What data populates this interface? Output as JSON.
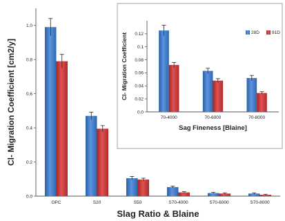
{
  "chart_data": [
    {
      "type": "bar",
      "categories": [
        "OPC",
        "S20",
        "S50",
        "S70-4000",
        "S70-6000",
        "S70-8000"
      ],
      "series": [
        {
          "name": "28D",
          "values": [
            0.99,
            0.47,
            0.105,
            0.053,
            0.018,
            0.015
          ],
          "errors": [
            0.05,
            0.022,
            0.01,
            0.006,
            0.004,
            0.004
          ]
        },
        {
          "name": "91D",
          "values": [
            0.79,
            0.395,
            0.097,
            0.022,
            0.015,
            0.008
          ],
          "errors": [
            0.04,
            0.018,
            0.008,
            0.004,
            0.004,
            0.003
          ]
        }
      ],
      "yticks": [
        "0.0",
        "0.2",
        "0.4",
        "0.6",
        "0.8",
        "1.0"
      ],
      "xlabel": "Slag Ratio & Blaine",
      "ylabel": "Cl- Migration Coefficient [cm2/y]",
      "ylim": [
        0,
        1.1
      ],
      "grid": false
    },
    {
      "type": "bar",
      "categories": [
        "70-4000",
        "70-6000",
        "70-8000"
      ],
      "series": [
        {
          "name": "28D",
          "values": [
            0.125,
            0.063,
            0.052
          ],
          "errors": [
            0.008,
            0.004,
            0.004
          ]
        },
        {
          "name": "91D",
          "values": [
            0.072,
            0.048,
            0.029
          ],
          "errors": [
            0.004,
            0.003,
            0.002
          ]
        }
      ],
      "yticks": [
        "0.0",
        "0.02",
        "0.04",
        "0.06",
        "0.08",
        "0.1",
        "0.12"
      ],
      "xlabel": "Sag Fineness [Blaine]",
      "ylabel": "Cl- Migration Coefficient",
      "ylim": [
        0,
        0.14
      ],
      "grid": false,
      "legend": "top-right"
    }
  ],
  "colors": {
    "series_28D": "#3a78c9",
    "series_91D": "#cf3535"
  }
}
